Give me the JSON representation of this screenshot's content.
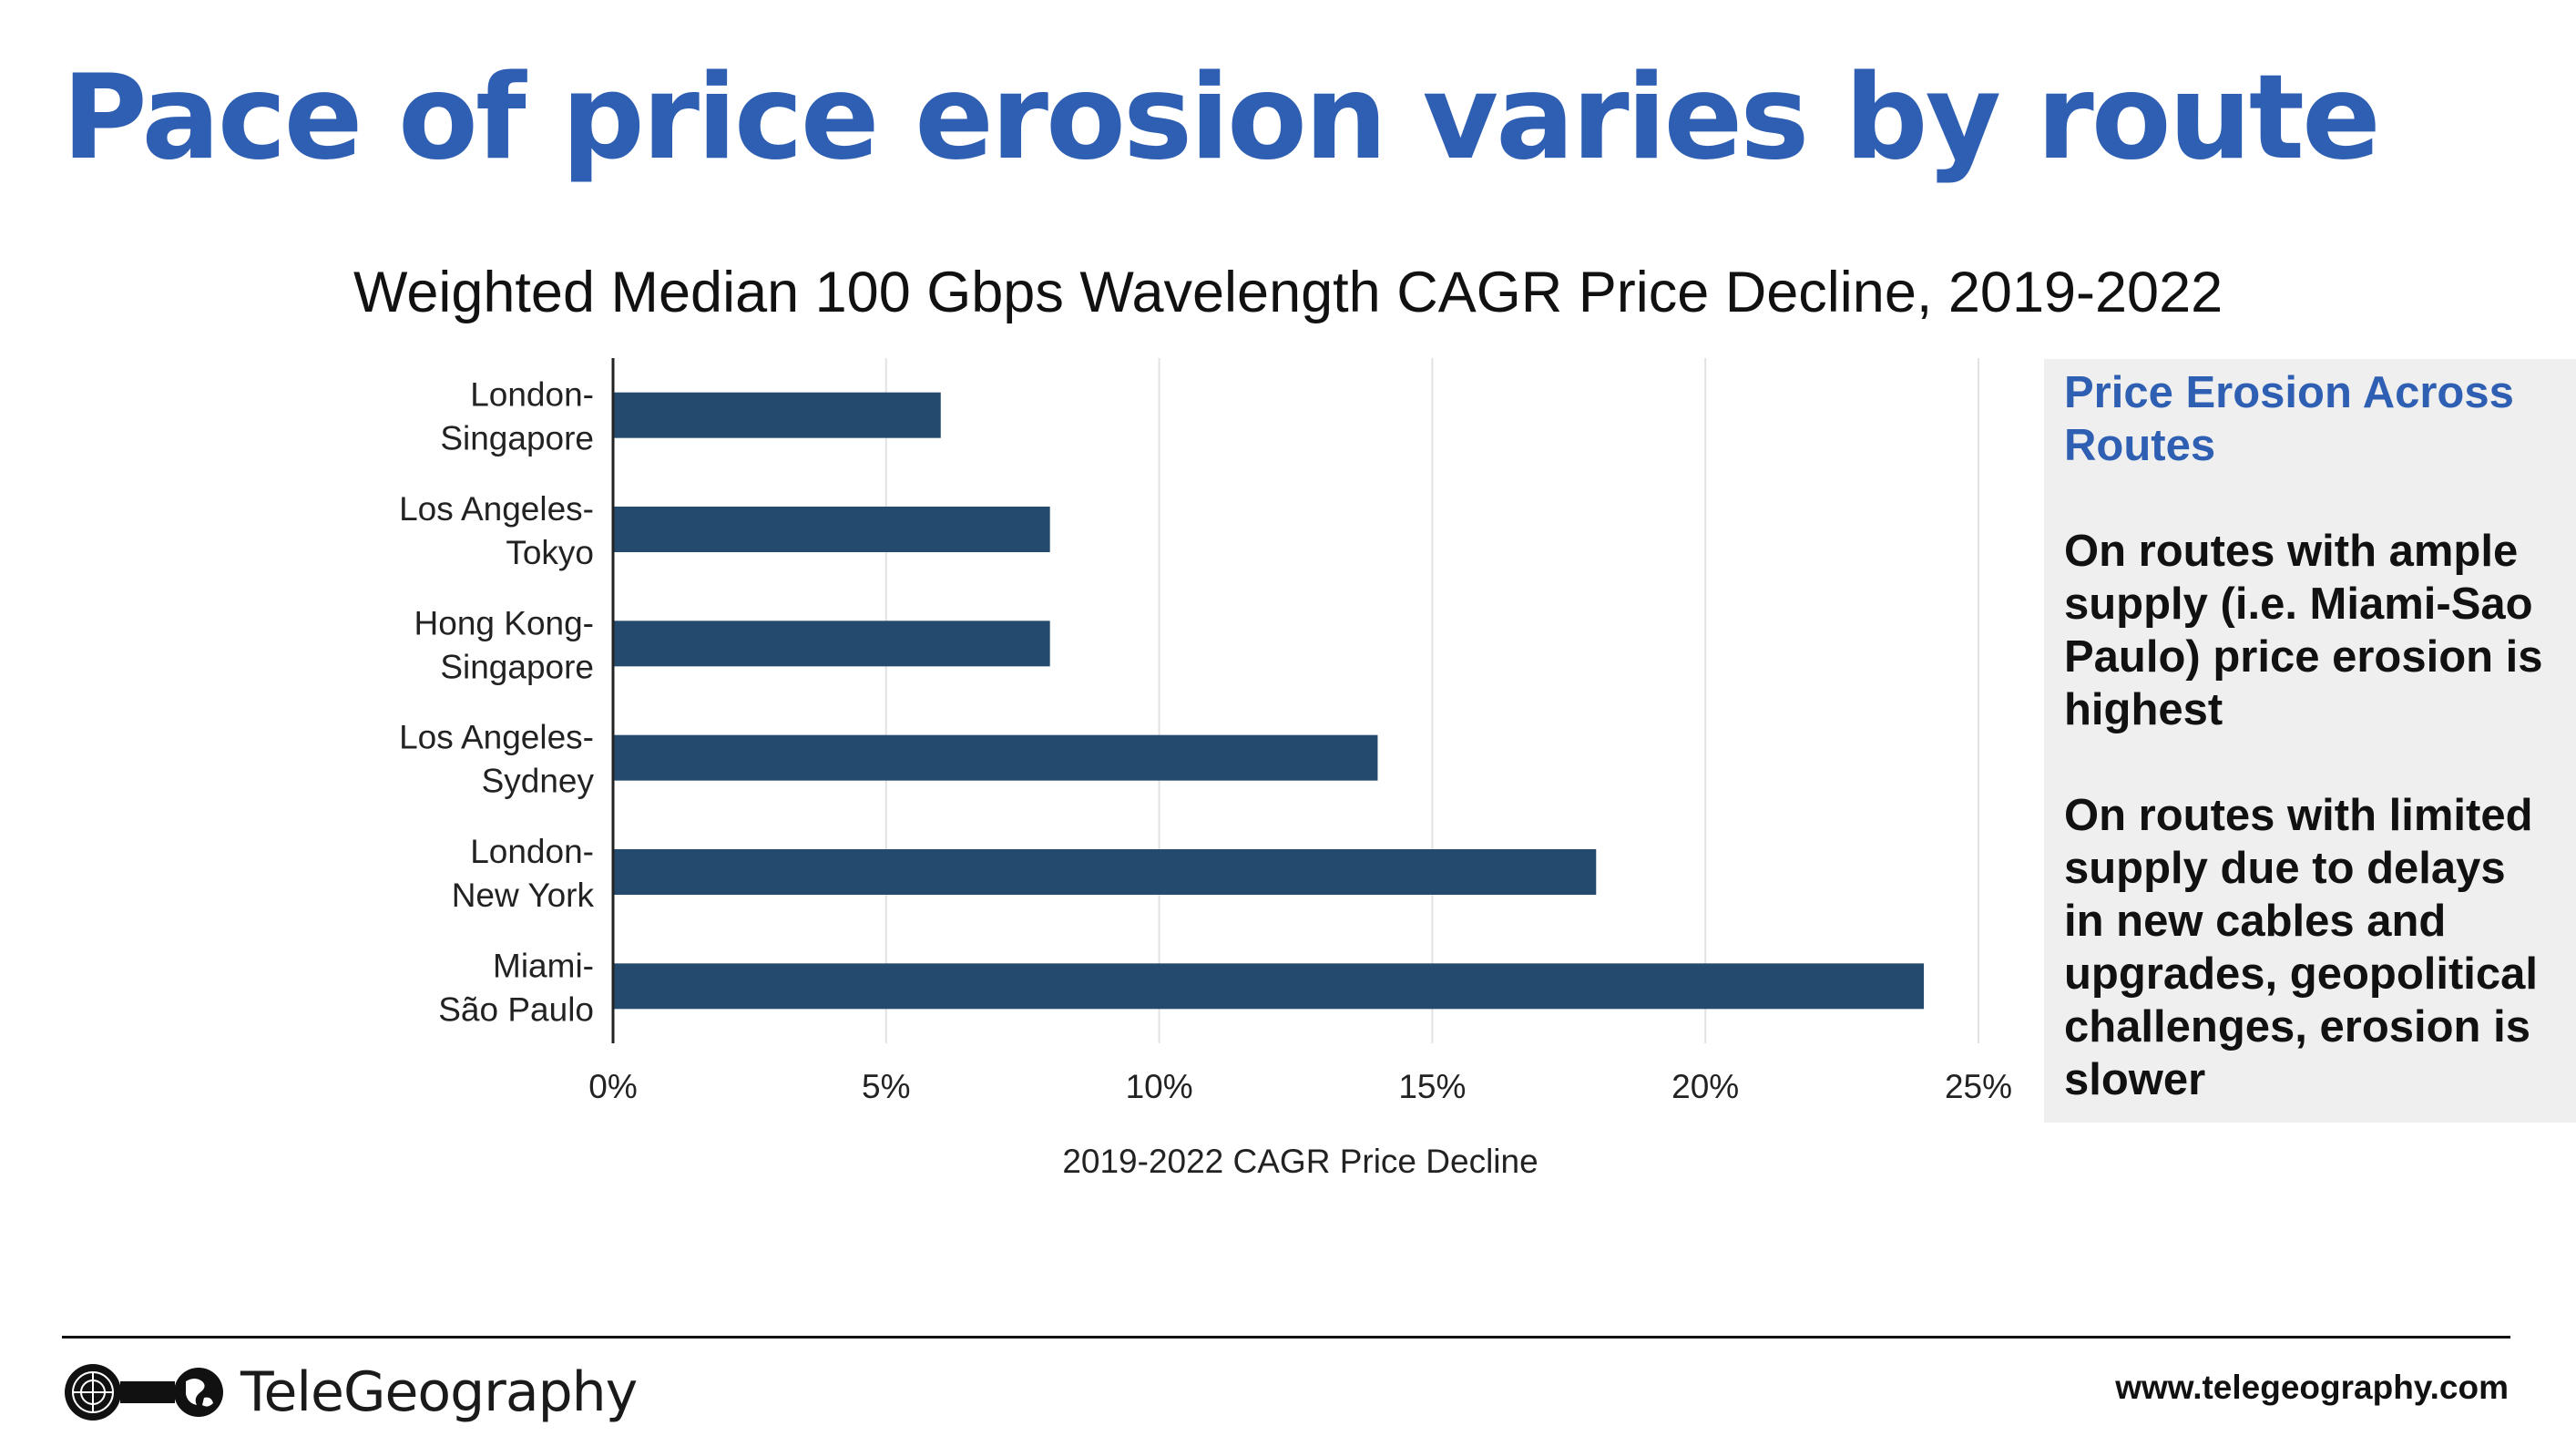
{
  "slide": {
    "title": "Pace of price erosion varies by route"
  },
  "chart_data": {
    "type": "bar",
    "orientation": "horizontal",
    "title": "Weighted Median 100 Gbps Wavelength CAGR Price Decline, 2019-2022",
    "xlabel": "2019-2022 CAGR Price Decline",
    "ylabel": "",
    "categories": [
      [
        "London-",
        "Singapore"
      ],
      [
        "Los Angeles-",
        "Tokyo"
      ],
      [
        "Hong Kong-",
        "Singapore"
      ],
      [
        "Los Angeles-",
        "Sydney"
      ],
      [
        "London-",
        "New York"
      ],
      [
        "Miami-",
        "São Paulo"
      ]
    ],
    "values": [
      6,
      8,
      8,
      14,
      18,
      24
    ],
    "xlim": [
      0,
      25
    ],
    "xticks": [
      0,
      5,
      10,
      15,
      20,
      25
    ],
    "xtick_labels": [
      "0%",
      "5%",
      "10%",
      "15%",
      "20%",
      "25%"
    ],
    "unit": "%",
    "bar_color": "#244b6e",
    "grid": "vertical",
    "legend": "none"
  },
  "sidebar": {
    "heading": "Price Erosion Across Routes",
    "paragraphs": [
      "On routes with ample supply (i.e. Miami-Sao Paulo) price erosion is highest",
      "On routes with limited supply due to delays in new cables and upgrades, geopolitical challenges, erosion is slower"
    ]
  },
  "footer": {
    "logo_text": "TeleGeography",
    "url": "www.telegeography.com"
  },
  "colors": {
    "title_blue": "#2f5fb3",
    "bar": "#244b6e",
    "sidebar_bg": "#efefef"
  },
  "icons": {
    "logo": "cable-globe-logo-icon"
  }
}
